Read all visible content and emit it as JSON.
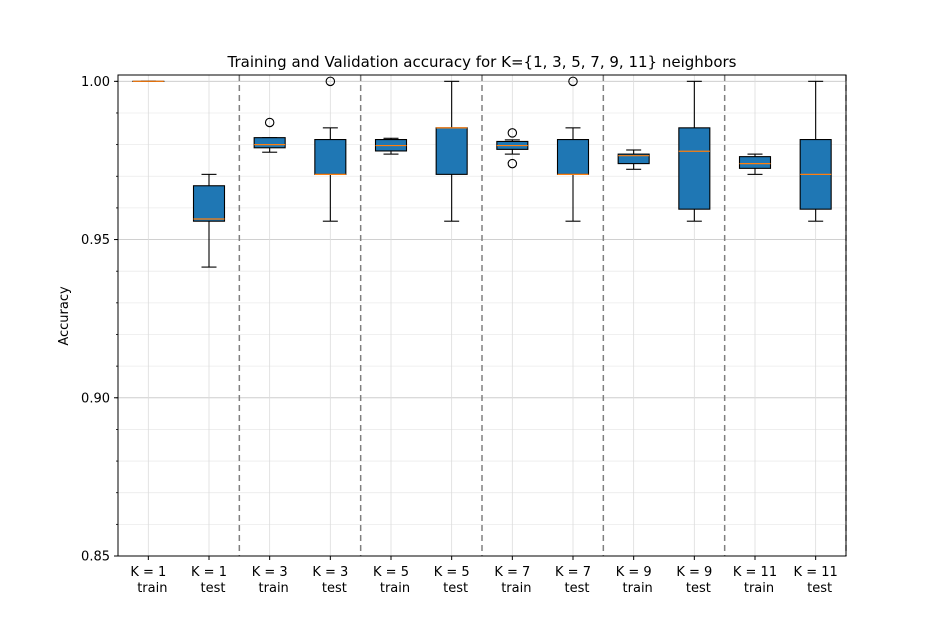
{
  "chart_data": {
    "type": "box",
    "title": "Training and Validation accuracy for K={1, 3, 5, 7, 9, 11} neighbors",
    "xlabel": "",
    "ylabel": "Accuracy",
    "ylim": [
      0.85,
      1.002
    ],
    "yticks": [
      0.85,
      0.9,
      0.95,
      1.0
    ],
    "ytick_labels": [
      "0.85",
      "0.90",
      "0.95",
      "1.00"
    ],
    "grid": true,
    "minor_grid": true,
    "box_color": "#1f77b4",
    "median_color": "#ff7f0e",
    "separator_color": "#808080",
    "categories": [
      [
        "K = 1",
        "train"
      ],
      [
        "K = 1",
        "test"
      ],
      [
        "K = 3",
        "train"
      ],
      [
        "K = 3",
        "test"
      ],
      [
        "K = 5",
        "train"
      ],
      [
        "K = 5",
        "test"
      ],
      [
        "K = 7",
        "train"
      ],
      [
        "K = 7",
        "test"
      ],
      [
        "K = 9",
        "train"
      ],
      [
        "K = 9",
        "test"
      ],
      [
        "K = 11",
        "train"
      ],
      [
        "K = 11",
        "test"
      ]
    ],
    "boxes": [
      {
        "whislo": 1.0,
        "q1": 1.0,
        "med": 1.0,
        "q3": 1.0,
        "whishi": 1.0,
        "fliers": []
      },
      {
        "whislo": 0.9413,
        "q1": 0.9558,
        "med": 0.9565,
        "q3": 0.967,
        "whishi": 0.9706,
        "fliers": []
      },
      {
        "whislo": 0.9776,
        "q1": 0.979,
        "med": 0.98,
        "q3": 0.9822,
        "whishi": 0.9822,
        "fliers": [
          0.987
        ]
      },
      {
        "whislo": 0.9558,
        "q1": 0.9706,
        "med": 0.9706,
        "q3": 0.9816,
        "whishi": 0.9853,
        "fliers": [
          1.0
        ]
      },
      {
        "whislo": 0.977,
        "q1": 0.978,
        "med": 0.9797,
        "q3": 0.9816,
        "whishi": 0.982,
        "fliers": []
      },
      {
        "whislo": 0.9558,
        "q1": 0.9706,
        "med": 0.9853,
        "q3": 0.9853,
        "whishi": 1.0,
        "fliers": []
      },
      {
        "whislo": 0.977,
        "q1": 0.9785,
        "med": 0.9797,
        "q3": 0.981,
        "whishi": 0.9815,
        "fliers": [
          0.9837,
          0.974
        ]
      },
      {
        "whislo": 0.9558,
        "q1": 0.9706,
        "med": 0.9706,
        "q3": 0.9816,
        "whishi": 0.9853,
        "fliers": [
          1.0
        ]
      },
      {
        "whislo": 0.9722,
        "q1": 0.974,
        "med": 0.9765,
        "q3": 0.977,
        "whishi": 0.9783,
        "fliers": []
      },
      {
        "whislo": 0.9558,
        "q1": 0.9596,
        "med": 0.9779,
        "q3": 0.9853,
        "whishi": 1.0,
        "fliers": []
      },
      {
        "whislo": 0.9706,
        "q1": 0.9725,
        "med": 0.974,
        "q3": 0.9762,
        "whishi": 0.977,
        "fliers": []
      },
      {
        "whislo": 0.9558,
        "q1": 0.9596,
        "med": 0.9706,
        "q3": 0.9816,
        "whishi": 1.0,
        "fliers": []
      }
    ]
  }
}
